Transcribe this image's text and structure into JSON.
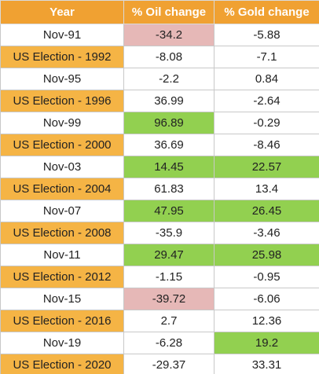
{
  "table": {
    "header": [
      "Year",
      "% Oil change",
      "% Gold change"
    ],
    "header_fill": "#f0a132",
    "rows": [
      [
        "Nov-91",
        -34.2,
        -5.88
      ],
      [
        "US Election - 1992",
        -8.08,
        -7.1
      ],
      [
        "Nov-95",
        -2.2,
        0.84
      ],
      [
        "US Election - 1996",
        36.99,
        -2.64
      ],
      [
        "Nov-99",
        96.89,
        -0.29
      ],
      [
        "US Election - 2000",
        36.69,
        -8.46
      ],
      [
        "Nov-03",
        14.45,
        22.57
      ],
      [
        "US Election - 2004",
        61.83,
        13.4
      ],
      [
        "Nov-07",
        47.95,
        26.45
      ],
      [
        "US Election - 2008",
        -35.9,
        -3.46
      ],
      [
        "Nov-11",
        29.47,
        25.98
      ],
      [
        "US Election - 2012",
        -1.15,
        -0.95
      ],
      [
        "Nov-15",
        -39.72,
        -6.06
      ],
      [
        "US Election - 2016",
        2.7,
        12.36
      ],
      [
        "Nov-19",
        -6.28,
        19.2
      ],
      [
        "US Election - 2020",
        -29.37,
        33.31
      ]
    ],
    "cell_fills": [
      [
        "#ffffff",
        "#e6b8b7",
        "#ffffff"
      ],
      [
        "#f5b445",
        "#ffffff",
        "#ffffff"
      ],
      [
        "#ffffff",
        "#ffffff",
        "#ffffff"
      ],
      [
        "#f5b445",
        "#ffffff",
        "#ffffff"
      ],
      [
        "#ffffff",
        "#92d050",
        "#ffffff"
      ],
      [
        "#f5b445",
        "#ffffff",
        "#ffffff"
      ],
      [
        "#ffffff",
        "#92d050",
        "#92d050"
      ],
      [
        "#f5b445",
        "#ffffff",
        "#ffffff"
      ],
      [
        "#ffffff",
        "#92d050",
        "#92d050"
      ],
      [
        "#f5b445",
        "#ffffff",
        "#ffffff"
      ],
      [
        "#ffffff",
        "#92d050",
        "#92d050"
      ],
      [
        "#f5b445",
        "#ffffff",
        "#ffffff"
      ],
      [
        "#ffffff",
        "#e6b8b7",
        "#ffffff"
      ],
      [
        "#f5b445",
        "#ffffff",
        "#ffffff"
      ],
      [
        "#ffffff",
        "#ffffff",
        "#92d050"
      ],
      [
        "#f5b445",
        "#ffffff",
        "#ffffff"
      ]
    ]
  }
}
